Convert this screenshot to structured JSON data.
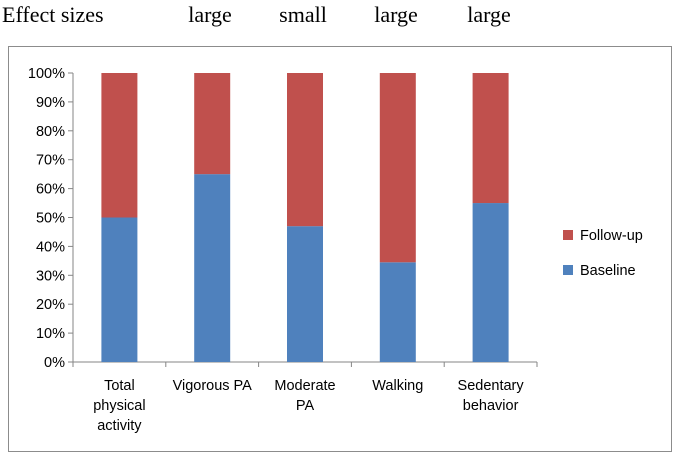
{
  "header": {
    "label": "Effect sizes",
    "effect_sizes": [
      "large",
      "small",
      "large",
      "large"
    ]
  },
  "chart_data": {
    "type": "bar",
    "stacked": true,
    "percent": true,
    "categories": [
      [
        "Total",
        "physical",
        "activity"
      ],
      [
        "Vigorous PA"
      ],
      [
        "Moderate",
        "PA"
      ],
      [
        "Walking"
      ],
      [
        "Sedentary",
        "behavior"
      ]
    ],
    "series": [
      {
        "name": "Baseline",
        "color": "#4f81bd",
        "values": [
          50,
          65,
          47,
          34.5,
          55
        ]
      },
      {
        "name": "Follow-up",
        "color": "#c0504d",
        "values": [
          50,
          35,
          53,
          65.5,
          45
        ]
      }
    ],
    "yticks": [
      "0%",
      "10%",
      "20%",
      "30%",
      "40%",
      "50%",
      "60%",
      "70%",
      "80%",
      "90%",
      "100%"
    ],
    "ylim": [
      0,
      100
    ],
    "legend": "right",
    "legend_order": [
      "Follow-up",
      "Baseline"
    ],
    "gridlines": false
  }
}
